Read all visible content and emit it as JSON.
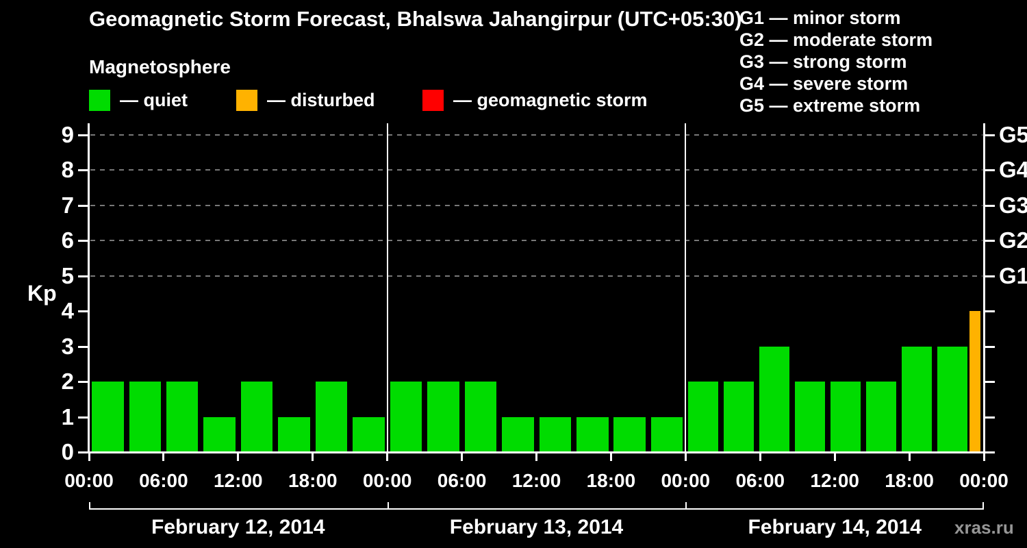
{
  "title": "Geomagnetic Storm Forecast, Bhalswa Jahangirpur (UTC+05:30)",
  "subtitle": "Magnetosphere",
  "kp_axis_label": "Kp",
  "watermark": "xras.ru",
  "legend": {
    "items": [
      {
        "status": "quiet",
        "label": "— quiet",
        "color": "#00dc00"
      },
      {
        "status": "disturbed",
        "label": "— disturbed",
        "color": "#ffb200"
      },
      {
        "status": "storm",
        "label": "— geomagnetic storm",
        "color": "#ff0000"
      }
    ]
  },
  "g_scale_legend": [
    "G1 — minor storm",
    "G2 — moderate storm",
    "G3 — strong storm",
    "G4 — severe storm",
    "G5 — extreme storm"
  ],
  "chart_data": {
    "type": "bar",
    "title": "Geomagnetic Storm Forecast, Bhalswa Jahangirpur (UTC+05:30)",
    "ylabel": "Kp",
    "ylim": [
      0,
      9
    ],
    "y_ticks": [
      0,
      1,
      2,
      3,
      4,
      5,
      6,
      7,
      8,
      9
    ],
    "grid": "dashed horizontal lines at G storm levels (Kp 5-9)",
    "right_axis": [
      {
        "kp": 5,
        "label": "G1"
      },
      {
        "kp": 6,
        "label": "G2"
      },
      {
        "kp": 7,
        "label": "G3"
      },
      {
        "kp": 8,
        "label": "G4"
      },
      {
        "kp": 9,
        "label": "G5"
      }
    ],
    "x_tick_labels_per_day": [
      "00:00",
      "06:00",
      "12:00",
      "18:00"
    ],
    "x_final_tick_label": "00:00",
    "bar_interval_hours": 3,
    "days": [
      {
        "date_label": "February 12, 2014",
        "kp": [
          2,
          2,
          2,
          1,
          2,
          1,
          2,
          1
        ]
      },
      {
        "date_label": "February 13, 2014",
        "kp": [
          2,
          2,
          2,
          1,
          1,
          1,
          1,
          1
        ]
      },
      {
        "date_label": "February 14, 2014",
        "kp": [
          2,
          2,
          3,
          2,
          2,
          2,
          3,
          3
        ]
      }
    ],
    "partial_next_interval": {
      "kp": 4,
      "status": "disturbed"
    },
    "colors": {
      "quiet": "#00dc00",
      "disturbed": "#ffb200",
      "storm": "#ff0000",
      "background": "#000000",
      "axis": "#ffffff",
      "grid": "#787878",
      "watermark": "#969696"
    }
  }
}
